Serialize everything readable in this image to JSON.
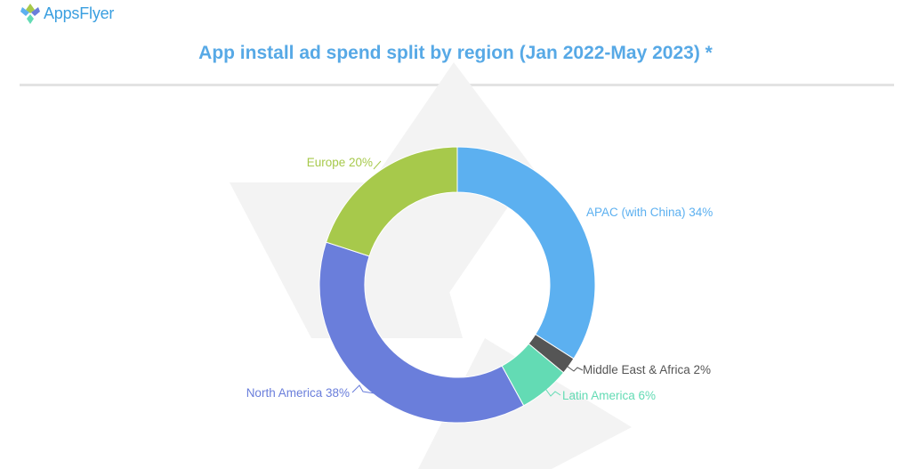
{
  "brand": {
    "name": "AppsFlyer"
  },
  "colors": {
    "title": "#57a9e6",
    "divider": "#e3e3e3",
    "watermark": "#f1f1f1"
  },
  "chart_data": {
    "type": "pie",
    "variant": "donut",
    "title": "App install ad spend split by region (Jan 2022-May 2023) *",
    "unit": "%",
    "slices": [
      {
        "label": "APAC (with China) 34%",
        "value": 34,
        "color": "#5cb0f0"
      },
      {
        "label": "Middle East & Africa 2%",
        "value": 2,
        "color": "#555555"
      },
      {
        "label": "Latin America 6%",
        "value": 6,
        "color": "#63dbb4"
      },
      {
        "label": "North America 38%",
        "value": 38,
        "color": "#6a7edb"
      },
      {
        "label": "Europe 20%",
        "value": 20,
        "color": "#a7c94b"
      }
    ],
    "label_colors": [
      "#5cb0f0",
      "#555555",
      "#63dbb4",
      "#6a7edb",
      "#a7c94b"
    ],
    "legend": "none"
  }
}
